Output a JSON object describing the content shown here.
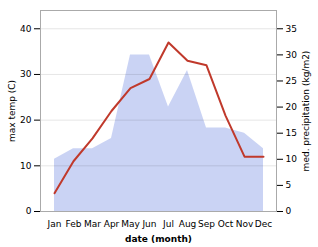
{
  "chart_data": {
    "type": "line",
    "categories": [
      "Jan",
      "Feb",
      "Mar",
      "Apr",
      "May",
      "Jun",
      "Jul",
      "Aug",
      "Sep",
      "Oct",
      "Nov",
      "Dec"
    ],
    "series": [
      {
        "type": "area",
        "color": "#b8c4f0",
        "axis": "y2",
        "values": [
          10,
          12,
          12,
          14,
          30,
          30,
          20,
          27,
          16,
          16,
          15,
          12
        ]
      },
      {
        "type": "line",
        "color": "#c0392b",
        "values": [
          4,
          11,
          16,
          22,
          27,
          29,
          37,
          33,
          32,
          21,
          12,
          12
        ]
      }
    ],
    "xlabel": "date (month)",
    "ylabel": "max temp (C)",
    "y2label": "med. precipitation (kg/m2)",
    "ylim": [
      0,
      44
    ],
    "yticks": [
      0,
      10,
      20,
      30,
      40
    ],
    "y2lim": [
      0,
      38.5
    ],
    "y2ticks": [
      0,
      5,
      10,
      15,
      20,
      25,
      30,
      35
    ],
    "grid": true
  }
}
